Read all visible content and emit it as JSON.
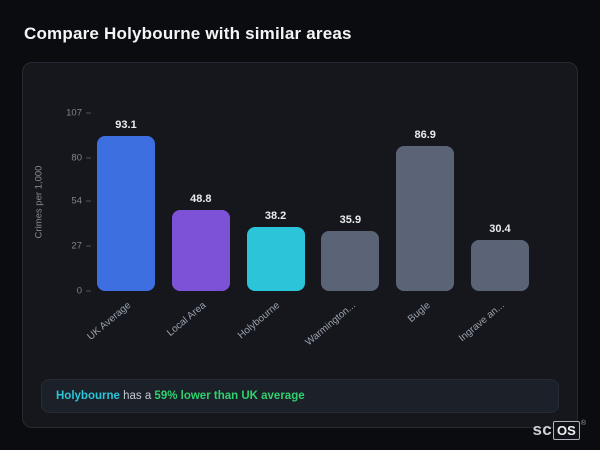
{
  "header": {
    "title": "Compare Holybourne with similar areas"
  },
  "summary": {
    "area": "Holybourne",
    "text": " has a ",
    "stat": "59% lower than UK average"
  },
  "watermark": {
    "prefix": "sc",
    "boxed": "OS",
    "reg": "®"
  },
  "colors": {
    "accent_blue": "#3e6fe0",
    "accent_purple": "#7e52d6",
    "accent_cyan": "#2bc4d9",
    "bar_gray": "#5b6477",
    "stat_green": "#2fd06f"
  },
  "chart_data": {
    "type": "bar",
    "title": "Compare Holybourne with similar areas",
    "xlabel": "",
    "ylabel": "Crimes per 1,000",
    "categories": [
      "UK Average",
      "Local Area",
      "Holybourne",
      "Warmington...",
      "Bugle",
      "Ingrave an..."
    ],
    "values": [
      93.1,
      48.8,
      38.2,
      35.9,
      86.9,
      30.4
    ],
    "bar_colors": [
      "#3e6fe0",
      "#7e52d6",
      "#2bc4d9",
      "#5b6477",
      "#5b6477",
      "#5b6477"
    ],
    "ylim": [
      0,
      107
    ],
    "yticks": [
      0,
      27,
      54,
      80,
      107
    ],
    "grid": false,
    "legend": false
  }
}
